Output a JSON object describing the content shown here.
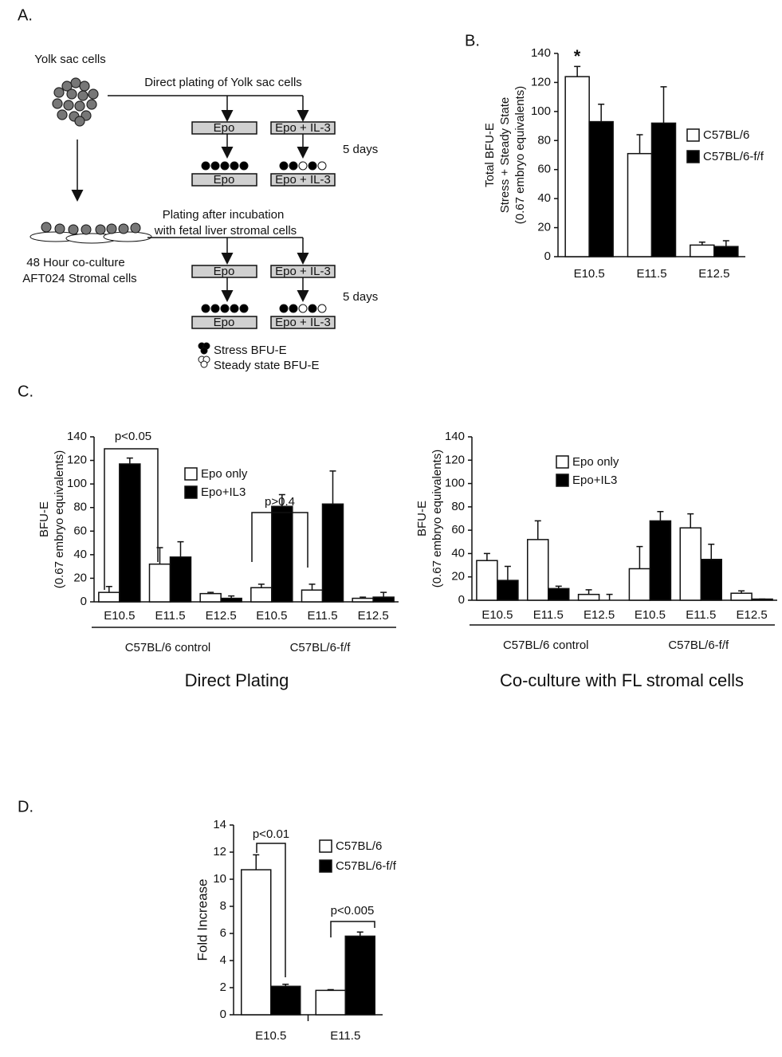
{
  "diagram": {
    "label": "A.",
    "yolk_sac": "Yolk sac cells",
    "direct": "Direct plating of Yolk sac cells",
    "plating": [
      "Plating after incubation",
      "with fetal liver stromal cells"
    ],
    "coculture": [
      "48 Hour co-culture",
      "AFT024 Stromal cells"
    ],
    "media": [
      "Epo",
      "Epo + IL-3",
      "Epo",
      "Epo + IL-3",
      "Epo",
      "Epo + IL-3",
      "Epo",
      "Epo + IL-3"
    ],
    "days": [
      "5 days",
      "5 days"
    ],
    "legend": [
      "Stress BFU-E",
      "Steady state BFU-E"
    ]
  },
  "chart_data": [
    {
      "type": "bar",
      "panel": "B.",
      "ylabel": [
        "Total BFU-E",
        "Stress + Steady State",
        "(0.67 embryo equivalents)"
      ],
      "categories": [
        "E10.5",
        "E11.5",
        "E12.5"
      ],
      "series": [
        {
          "name": "C57BL/6",
          "color": "#ffffff",
          "values": [
            124,
            71,
            8
          ],
          "errors": [
            7,
            13,
            2
          ]
        },
        {
          "name": "C57BL/6-f/f",
          "color": "#000000",
          "values": [
            93,
            92,
            7
          ],
          "errors": [
            12,
            25,
            4
          ]
        }
      ],
      "ylim": [
        0,
        140
      ],
      "yticks": [
        0,
        20,
        40,
        60,
        80,
        100,
        120,
        140
      ],
      "annotations": [
        "*"
      ]
    },
    {
      "type": "bar",
      "panel": "C.",
      "title": "Direct Plating",
      "ylabel": [
        "BFU-E",
        "(0.67 embryo equivalents)"
      ],
      "categories": [
        "E10.5",
        "E11.5",
        "E12.5",
        "E10.5",
        "E11.5",
        "E12.5"
      ],
      "groups": [
        "C57BL/6 control",
        "C57BL/6-f/f"
      ],
      "series": [
        {
          "name": "Epo only",
          "color": "#ffffff",
          "values": [
            8,
            32,
            7,
            12,
            10,
            3
          ],
          "errors": [
            5,
            14,
            1,
            3,
            5,
            1
          ]
        },
        {
          "name": "Epo+IL3",
          "color": "#000000",
          "values": [
            117,
            38,
            3,
            81,
            83,
            4
          ],
          "errors": [
            5,
            13,
            2,
            10,
            28,
            4
          ]
        }
      ],
      "ylim": [
        0,
        140
      ],
      "yticks": [
        0,
        20,
        40,
        60,
        80,
        100,
        120,
        140
      ],
      "annotations": [
        "p<0.05",
        "p>0.4"
      ]
    },
    {
      "type": "bar",
      "title": "Co-culture with FL stromal cells",
      "ylabel": [
        "BFU-E",
        "(0.67 embryo equivalents)"
      ],
      "categories": [
        "E10.5",
        "E11.5",
        "E12.5",
        "E10.5",
        "E11.5",
        "E12.5"
      ],
      "groups": [
        "C57BL/6 control",
        "C57BL/6-f/f"
      ],
      "series": [
        {
          "name": "Epo only",
          "color": "#ffffff",
          "values": [
            34,
            52,
            5,
            27,
            62,
            6
          ],
          "errors": [
            6,
            16,
            4,
            19,
            12,
            2
          ]
        },
        {
          "name": "Epo+IL3",
          "color": "#000000",
          "values": [
            17,
            10,
            0,
            68,
            35,
            1
          ],
          "errors": [
            12,
            2,
            5,
            8,
            13,
            0
          ]
        }
      ],
      "ylim": [
        0,
        140
      ],
      "yticks": [
        0,
        20,
        40,
        60,
        80,
        100,
        120,
        140
      ]
    },
    {
      "type": "bar",
      "panel": "D.",
      "ylabel": [
        "Fold Increase"
      ],
      "categories": [
        "E10.5",
        "E11.5"
      ],
      "series": [
        {
          "name": "C57BL/6",
          "color": "#ffffff",
          "values": [
            10.7,
            1.8
          ],
          "errors": [
            1.1,
            0.05
          ]
        },
        {
          "name": "C57BL/6-f/f",
          "color": "#000000",
          "values": [
            2.1,
            5.8
          ],
          "errors": [
            0.15,
            0.3
          ]
        }
      ],
      "ylim": [
        0,
        14
      ],
      "yticks": [
        0,
        2,
        4,
        6,
        8,
        10,
        12,
        14
      ],
      "annotations": [
        "p<0.01",
        "p<0.005"
      ]
    }
  ]
}
